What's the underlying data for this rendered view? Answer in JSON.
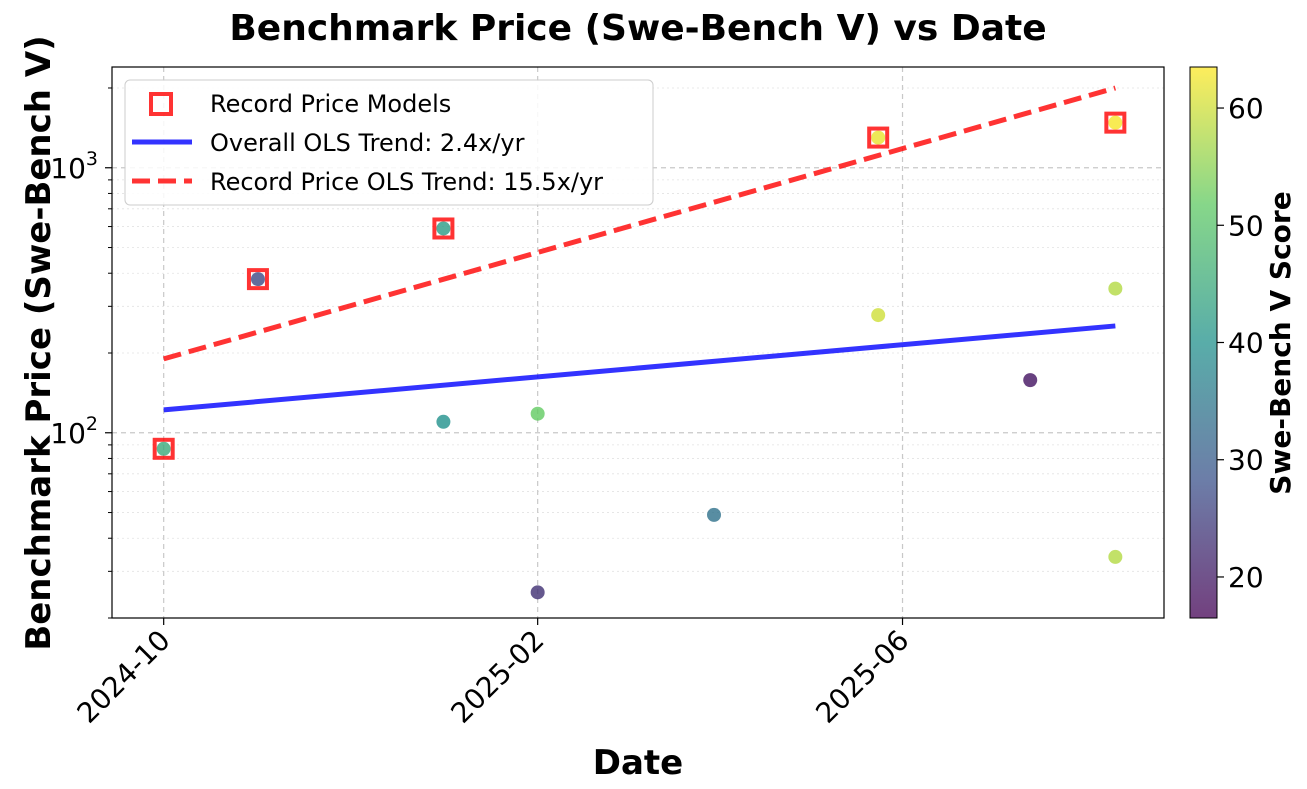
{
  "chart_data": {
    "type": "scatter",
    "title": "Benchmark Price (Swe-Bench V) vs Date",
    "xlabel": "Date",
    "ylabel": "Benchmark Price (Swe-Bench V)",
    "yscale": "log",
    "ylim": [
      20,
      2400
    ],
    "xlim": [
      "2024-09-14",
      "2025-08-26"
    ],
    "x_ticks": [
      "2024-10",
      "2025-02",
      "2025-06"
    ],
    "y_ticks": [
      {
        "base": "10",
        "exp": "2",
        "value": 100
      },
      {
        "base": "10",
        "exp": "3",
        "value": 1000
      }
    ],
    "grid": true,
    "legend_position": "top-left",
    "colorbar": {
      "label": "Swe-Bench V Score",
      "min": 16.5,
      "max": 63.5,
      "ticks": [
        20,
        30,
        40,
        50,
        60
      ],
      "colormap": "viridis"
    },
    "series": [
      {
        "type": "scatter",
        "points": [
          {
            "date": "2024-10-01",
            "price": 87,
            "score": 45
          },
          {
            "date": "2024-11-01",
            "price": 380,
            "score": 27
          },
          {
            "date": "2025-01-01",
            "price": 590,
            "score": 42
          },
          {
            "date": "2025-01-01",
            "price": 110,
            "score": 40
          },
          {
            "date": "2025-02-01",
            "price": 118,
            "score": 52
          },
          {
            "date": "2025-02-01",
            "price": 25,
            "score": 23
          },
          {
            "date": "2025-03-31",
            "price": 49,
            "score": 34
          },
          {
            "date": "2025-05-24",
            "price": 1300,
            "score": 62
          },
          {
            "date": "2025-05-24",
            "price": 278,
            "score": 60
          },
          {
            "date": "2025-07-13",
            "price": 158,
            "score": 19
          },
          {
            "date": "2025-08-10",
            "price": 1480,
            "score": 63
          },
          {
            "date": "2025-08-10",
            "price": 350,
            "score": 58
          },
          {
            "date": "2025-08-10",
            "price": 34,
            "score": 58
          }
        ]
      },
      {
        "name": "Record Price Models",
        "type": "scatter",
        "marker": "square-outline",
        "color": "#ff0000",
        "points": [
          {
            "date": "2024-10-01",
            "price": 87
          },
          {
            "date": "2024-11-01",
            "price": 380
          },
          {
            "date": "2025-01-01",
            "price": 590
          },
          {
            "date": "2025-05-24",
            "price": 1300
          },
          {
            "date": "2025-08-10",
            "price": 1480
          }
        ]
      },
      {
        "name": "Overall OLS Trend: 2.4x/yr",
        "type": "line",
        "style": "solid",
        "color": "#0000ff",
        "points": [
          {
            "date": "2024-10-01",
            "price": 122
          },
          {
            "date": "2025-08-10",
            "price": 253
          }
        ]
      },
      {
        "name": "Record Price OLS Trend: 15.5x/yr",
        "type": "line",
        "style": "dashed",
        "color": "#ff0000",
        "points": [
          {
            "date": "2024-10-01",
            "price": 190
          },
          {
            "date": "2025-08-10",
            "price": 2000
          }
        ]
      }
    ]
  }
}
